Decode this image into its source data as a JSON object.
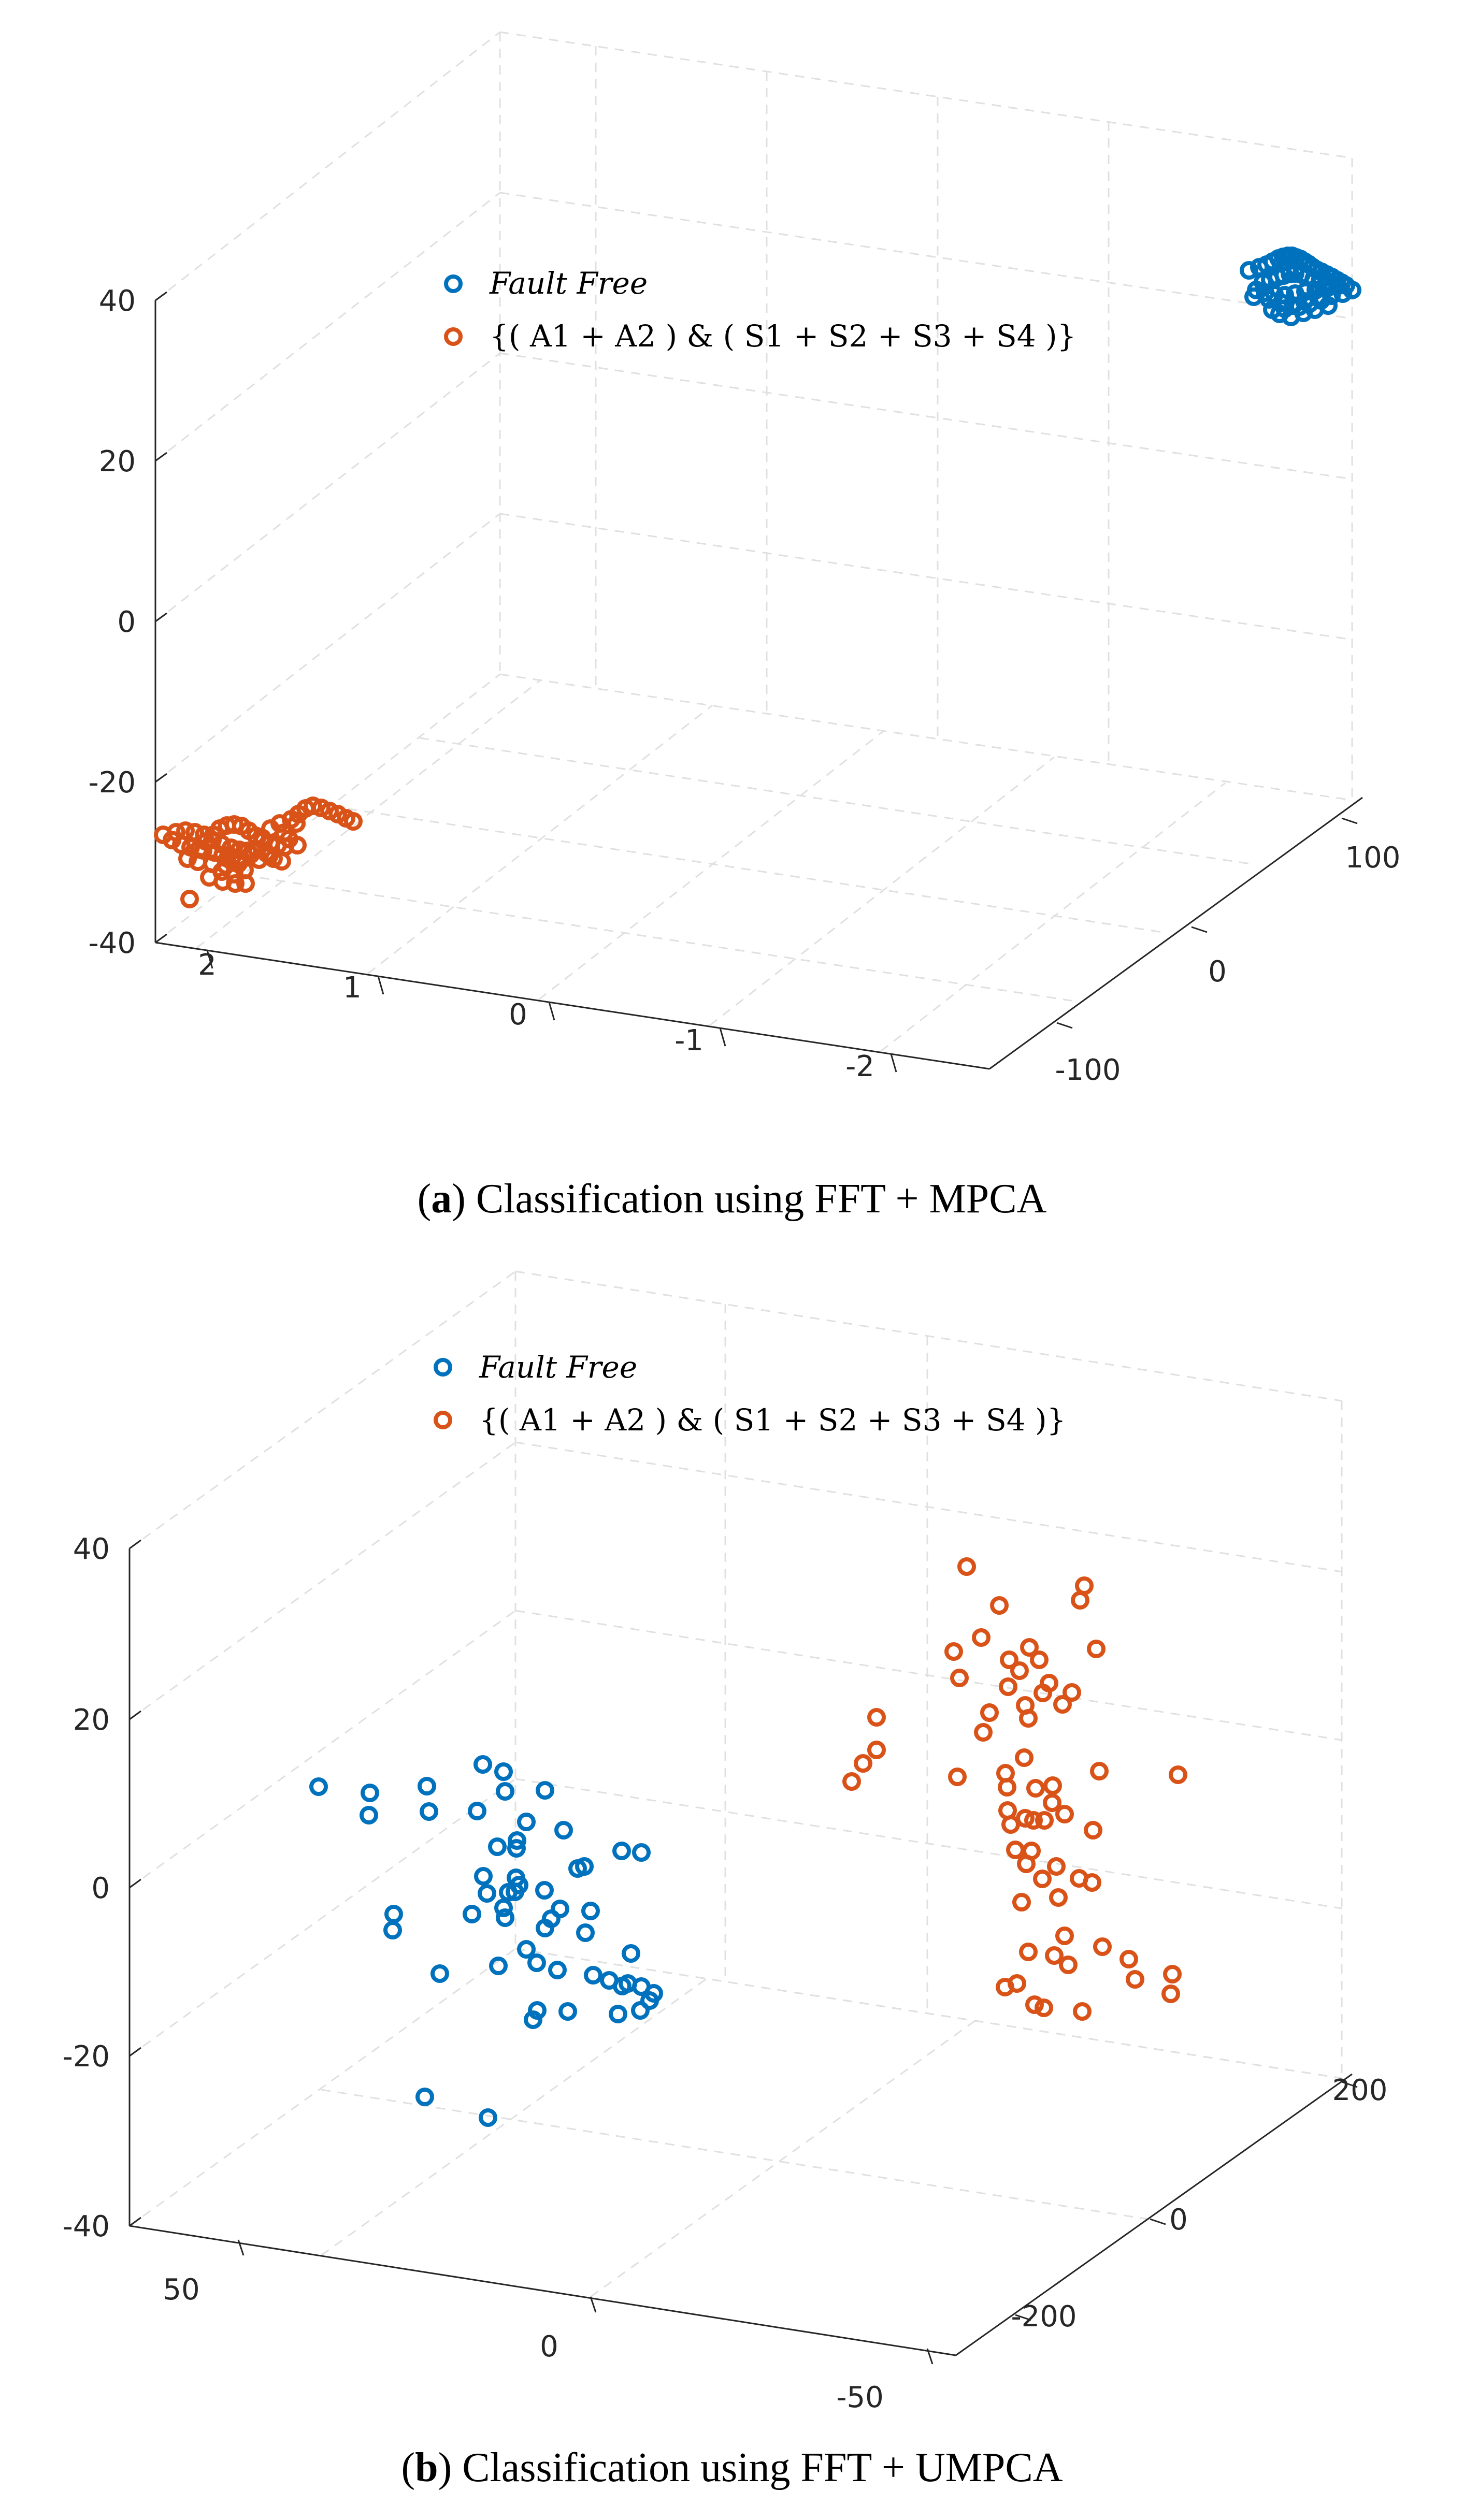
{
  "chart_data": [
    {
      "type": "scatter",
      "title": "",
      "caption_letter": "a",
      "caption_text": " Classification using FFT + MPCA",
      "z_ticks": [
        "40",
        "20",
        "0",
        "-20",
        "-40"
      ],
      "x_ticks": [
        "2",
        "1",
        "0",
        "-1",
        "-2"
      ],
      "y_ticks": [
        "100",
        "0",
        "-100"
      ],
      "zlim": [
        -40,
        40
      ],
      "grid": true,
      "legend_position": "top-center",
      "legend": [
        "Fault Free",
        "{( A1 + A2 ) & ( S1 + S2 + S3 + S4 )}"
      ],
      "colors": {
        "fault_free": "#0072BD",
        "fault": "#D95319"
      },
      "series": [
        {
          "name": "Fault Free",
          "color": "#0072BD",
          "points": [
            [
              2411,
              522
            ],
            [
              2431,
              516
            ],
            [
              2445,
              511
            ],
            [
              2457,
              505
            ],
            [
              2468,
              499
            ],
            [
              2477,
              496
            ],
            [
              2486,
              494
            ],
            [
              2494,
              494
            ],
            [
              2502,
              497
            ],
            [
              2510,
              500
            ],
            [
              2518,
              505
            ],
            [
              2526,
              510
            ],
            [
              2534,
              516
            ],
            [
              2542,
              521
            ],
            [
              2551,
              525
            ],
            [
              2561,
              530
            ],
            [
              2571,
              535
            ],
            [
              2581,
              541
            ],
            [
              2590,
              546
            ],
            [
              2598,
              551
            ],
            [
              2438,
              545
            ],
            [
              2452,
              540
            ],
            [
              2466,
              535
            ],
            [
              2478,
              532
            ],
            [
              2490,
              529
            ],
            [
              2500,
              528
            ],
            [
              2512,
              530
            ],
            [
              2524,
              534
            ],
            [
              2536,
              539
            ],
            [
              2548,
              543
            ],
            [
              2560,
              547
            ],
            [
              2572,
              551
            ],
            [
              2425,
              560
            ],
            [
              2442,
              565
            ],
            [
              2460,
              568
            ],
            [
              2480,
              570
            ],
            [
              2500,
              567
            ],
            [
              2520,
              563
            ],
            [
              2540,
              560
            ],
            [
              2562,
              556
            ],
            [
              2582,
              552
            ],
            [
              2420,
              573
            ],
            [
              2450,
              578
            ],
            [
              2474,
              585
            ],
            [
              2496,
              590
            ],
            [
              2518,
              582
            ],
            [
              2546,
              575
            ],
            [
              2570,
              571
            ],
            [
              2592,
              567
            ],
            [
              2610,
              560
            ],
            [
              2456,
              598
            ],
            [
              2480,
              596
            ],
            [
              2508,
              592
            ],
            [
              2528,
              586
            ],
            [
              2550,
              580
            ],
            [
              2470,
              606
            ],
            [
              2492,
              612
            ],
            [
              2516,
              604
            ],
            [
              2538,
              598
            ],
            [
              2564,
              590
            ]
          ]
        },
        {
          "name": "{( A1 + A2 ) & ( S1 + S2 + S3 + S4 )}",
          "color": "#D95319",
          "points": [
            [
              315,
              1612
            ],
            [
              332,
              1622
            ],
            [
              350,
              1631
            ],
            [
              368,
              1636
            ],
            [
              384,
              1640
            ],
            [
              398,
              1625
            ],
            [
              412,
              1612
            ],
            [
              424,
              1600
            ],
            [
              438,
              1594
            ],
            [
              452,
              1592
            ],
            [
              466,
              1595
            ],
            [
              480,
              1604
            ],
            [
              494,
              1614
            ],
            [
              508,
              1623
            ],
            [
              522,
              1628
            ],
            [
              536,
              1632
            ],
            [
              550,
              1635
            ],
            [
              340,
              1607
            ],
            [
              358,
              1604
            ],
            [
              376,
              1607
            ],
            [
              394,
              1612
            ],
            [
              410,
              1622
            ],
            [
              428,
              1630
            ],
            [
              446,
              1637
            ],
            [
              462,
              1641
            ],
            [
              478,
              1643
            ],
            [
              496,
              1640
            ],
            [
              392,
              1642
            ],
            [
              414,
              1646
            ],
            [
              430,
              1651
            ],
            [
              448,
              1655
            ],
            [
              466,
              1660
            ],
            [
              484,
              1650
            ],
            [
              362,
              1658
            ],
            [
              382,
              1664
            ],
            [
              410,
              1668
            ],
            [
              436,
              1671
            ],
            [
              460,
              1668
            ],
            [
              500,
              1660
            ],
            [
              520,
              1652
            ],
            [
              428,
              1683
            ],
            [
              452,
              1688
            ],
            [
              472,
              1680
            ],
            [
              404,
              1694
            ],
            [
              430,
              1702
            ],
            [
              454,
              1706
            ],
            [
              366,
              1736
            ],
            [
              474,
              1706
            ],
            [
              506,
              1618
            ],
            [
              522,
              1600
            ],
            [
              540,
              1590
            ],
            [
              562,
              1582
            ],
            [
              576,
              1572
            ],
            [
              590,
              1561
            ],
            [
              604,
              1556
            ],
            [
              620,
              1560
            ],
            [
              636,
              1566
            ],
            [
              652,
              1572
            ],
            [
              668,
              1580
            ],
            [
              682,
              1586
            ],
            [
              572,
              1590
            ],
            [
              548,
              1608
            ],
            [
              558,
              1620
            ],
            [
              574,
              1632
            ],
            [
              514,
              1647
            ],
            [
              528,
              1658
            ],
            [
              544,
              1663
            ]
          ]
        }
      ]
    },
    {
      "type": "scatter",
      "title": "",
      "caption_letter": "b",
      "caption_text": " Classification using FFT + UMPCA",
      "z_ticks": [
        "40",
        "20",
        "0",
        "-20",
        "-40"
      ],
      "x_ticks": [
        "50",
        "0",
        "-50"
      ],
      "y_ticks": [
        "200",
        "0",
        "-200"
      ],
      "zlim": [
        -40,
        40
      ],
      "grid": true,
      "legend_position": "top-center",
      "legend": [
        "Fault Free",
        "{( A1 + A2 ) & ( S1 + S2 + S3 + S4 )}"
      ],
      "colors": {
        "fault_free": "#0072BD",
        "fault": "#D95319"
      },
      "series": [
        {
          "name": "Fault Free",
          "color": "#0072BD",
          "points": [
            [
              615,
              1020
            ],
            [
              714,
              1032
            ],
            [
              712,
              1075
            ],
            [
              824,
              1019
            ],
            [
              828,
              1068
            ],
            [
              932,
              977
            ],
            [
              972,
              991
            ],
            [
              975,
              1029
            ],
            [
              1052,
              1027
            ],
            [
              921,
              1067
            ],
            [
              1016,
              1088
            ],
            [
              1088,
              1104
            ],
            [
              998,
              1124
            ],
            [
              960,
              1136
            ],
            [
              997,
              1139
            ],
            [
              1200,
              1144
            ],
            [
              1238,
              1147
            ],
            [
              1115,
              1178
            ],
            [
              1128,
              1174
            ],
            [
              933,
              1193
            ],
            [
              996,
              1196
            ],
            [
              1002,
              1210
            ],
            [
              994,
              1223
            ],
            [
              981,
              1224
            ],
            [
              1051,
              1220
            ],
            [
              940,
              1226
            ],
            [
              972,
              1254
            ],
            [
              1081,
              1256
            ],
            [
              1140,
              1260
            ],
            [
              911,
              1266
            ],
            [
              975,
              1273
            ],
            [
              1064,
              1275
            ],
            [
              1052,
              1293
            ],
            [
              758,
              1297
            ],
            [
              1130,
              1302
            ],
            [
              1016,
              1334
            ],
            [
              1218,
              1342
            ],
            [
              1036,
              1360
            ],
            [
              1076,
              1374
            ],
            [
              849,
              1381
            ],
            [
              1145,
              1384
            ],
            [
              1176,
              1394
            ],
            [
              1201,
              1405
            ],
            [
              1212,
              1400
            ],
            [
              1238,
              1406
            ],
            [
              962,
              1366
            ],
            [
              1254,
              1433
            ],
            [
              1262,
              1419
            ],
            [
              1236,
              1452
            ],
            [
              1037,
              1452
            ],
            [
              1029,
              1470
            ],
            [
              1096,
              1454
            ],
            [
              1193,
              1459
            ],
            [
              820,
              1619
            ],
            [
              942,
              1659
            ],
            [
              760,
              1266
            ]
          ]
        },
        {
          "name": "{( A1 + A2 ) & ( S1 + S2 + S3 + S4 )}",
          "color": "#D95319",
          "points": [
            [
              1866,
              595
            ],
            [
              1929,
              670
            ],
            [
              2093,
              632
            ],
            [
              2085,
              660
            ],
            [
              1894,
              732
            ],
            [
              1841,
              759
            ],
            [
              1852,
              810
            ],
            [
              1948,
              775
            ],
            [
              2006,
              775
            ],
            [
              2116,
              754
            ],
            [
              1987,
              751
            ],
            [
              1968,
              796
            ],
            [
              2025,
              820
            ],
            [
              2013,
              839
            ],
            [
              2069,
              838
            ],
            [
              1946,
              827
            ],
            [
              2051,
              861
            ],
            [
              1979,
              863
            ],
            [
              1985,
              888
            ],
            [
              1910,
              877
            ],
            [
              1692,
              886
            ],
            [
              1898,
              915
            ],
            [
              1692,
              949
            ],
            [
              1666,
              975
            ],
            [
              1644,
              1010
            ],
            [
              1848,
              1001
            ],
            [
              1977,
              964
            ],
            [
              1941,
              994
            ],
            [
              1944,
              1021
            ],
            [
              1999,
              1023
            ],
            [
              2032,
              1018
            ],
            [
              2122,
              990
            ],
            [
              2274,
              997
            ],
            [
              1979,
              1081
            ],
            [
              2031,
              1051
            ],
            [
              1995,
              1085
            ],
            [
              2016,
              1085
            ],
            [
              1945,
              1066
            ],
            [
              1951,
              1093
            ],
            [
              2110,
              1104
            ],
            [
              2055,
              1073
            ],
            [
              1960,
              1142
            ],
            [
              1991,
              1144
            ],
            [
              1981,
              1169
            ],
            [
              2039,
              1174
            ],
            [
              2012,
              1198
            ],
            [
              2083,
              1197
            ],
            [
              2108,
              1205
            ],
            [
              1972,
              1243
            ],
            [
              2043,
              1234
            ],
            [
              2055,
              1308
            ],
            [
              1985,
              1339
            ],
            [
              2035,
              1346
            ],
            [
              2128,
              1329
            ],
            [
              2062,
              1364
            ],
            [
              2179,
              1353
            ],
            [
              2191,
              1392
            ],
            [
              2260,
              1420
            ],
            [
              2263,
              1382
            ],
            [
              1963,
              1400
            ],
            [
              1940,
              1407
            ],
            [
              1997,
              1441
            ],
            [
              2015,
              1447
            ],
            [
              2089,
              1454
            ]
          ]
        }
      ]
    }
  ]
}
